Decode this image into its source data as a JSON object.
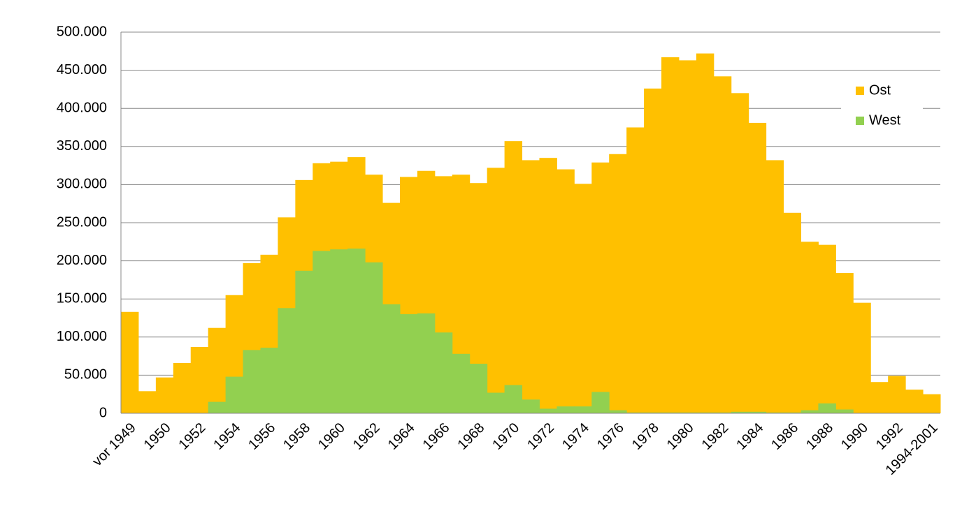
{
  "chart_data": {
    "type": "bar",
    "categories": [
      "vor 1949",
      null,
      "1950",
      null,
      "1952",
      null,
      "1954",
      null,
      "1956",
      null,
      "1958",
      null,
      "1960",
      null,
      "1962",
      null,
      "1964",
      null,
      "1966",
      null,
      "1968",
      null,
      "1970",
      null,
      "1972",
      null,
      "1974",
      null,
      "1976",
      null,
      "1978",
      null,
      "1980",
      null,
      "1982",
      null,
      "1984",
      null,
      "1986",
      null,
      "1988",
      null,
      "1990",
      null,
      "1992",
      null,
      "1994-2001"
    ],
    "series": [
      {
        "name": "Ost",
        "color": "#ffc000",
        "values": [
          133000,
          29000,
          47000,
          66000,
          87000,
          112000,
          155000,
          197000,
          208000,
          257000,
          306000,
          328000,
          330000,
          336000,
          313000,
          276000,
          310000,
          318000,
          311000,
          313000,
          302000,
          322000,
          357000,
          332000,
          335000,
          320000,
          301000,
          329000,
          340000,
          375000,
          426000,
          467000,
          463000,
          472000,
          442000,
          420000,
          381000,
          332000,
          263000,
          225000,
          221000,
          184000,
          145000,
          41000,
          49000,
          31000,
          25000
        ]
      },
      {
        "name": "West",
        "color": "#92d050",
        "values": [
          0,
          0,
          0,
          0,
          0,
          15000,
          48000,
          83000,
          86000,
          138000,
          187000,
          213000,
          215000,
          216000,
          198000,
          143000,
          130000,
          131000,
          106000,
          78000,
          65000,
          27000,
          37000,
          18000,
          6000,
          9000,
          9000,
          28000,
          4000,
          1000,
          1000,
          1000,
          1000,
          1000,
          1000,
          2000,
          2000,
          1000,
          1000,
          4000,
          13000,
          5000,
          0,
          0,
          0,
          0,
          0
        ]
      }
    ],
    "ylim": [
      0,
      500000
    ],
    "yticks": [
      0,
      {
        "value": 50000,
        "label": "50.000"
      },
      {
        "value": 100000,
        "label": "100.000"
      },
      {
        "value": 150000,
        "label": "150.000"
      },
      {
        "value": 200000,
        "label": "200.000"
      },
      {
        "value": 250000,
        "label": "250.000"
      },
      {
        "value": 300000,
        "label": "300.000"
      },
      {
        "value": 350000,
        "label": "350.000"
      },
      {
        "value": 400000,
        "label": "400.000"
      },
      {
        "value": 450000,
        "label": "450.000"
      },
      {
        "value": 500000,
        "label": "500.000"
      }
    ],
    "grid": true,
    "legend": "upper right"
  }
}
